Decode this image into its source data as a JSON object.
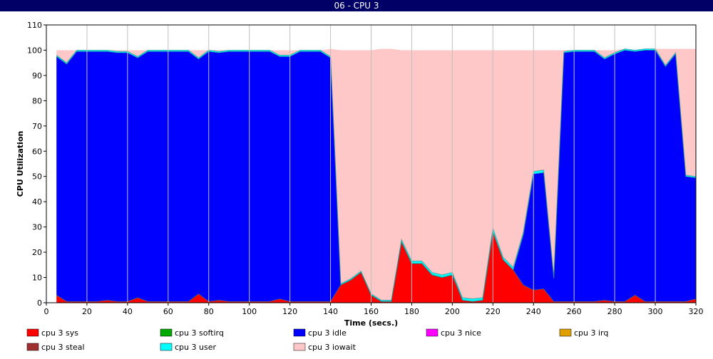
{
  "window": {
    "title": "06 - CPU 3"
  },
  "colors": {
    "background": "#ffffff",
    "grid": "#c0c0c0",
    "titlebar": "#000066"
  },
  "chart_data": {
    "type": "area",
    "stacked": true,
    "title": "",
    "xlabel": "Time (secs.)",
    "ylabel": "CPU Utilization",
    "xlim": [
      0,
      320
    ],
    "ylim": [
      0,
      110
    ],
    "xticks": [
      0,
      20,
      40,
      60,
      80,
      100,
      120,
      140,
      160,
      180,
      200,
      220,
      240,
      260,
      280,
      300,
      320
    ],
    "yticks": [
      0,
      10,
      20,
      30,
      40,
      50,
      60,
      70,
      80,
      90,
      100,
      110
    ],
    "grid": true,
    "legend_position": "bottom",
    "x": [
      5,
      10,
      15,
      20,
      25,
      30,
      35,
      40,
      45,
      50,
      55,
      60,
      65,
      70,
      75,
      80,
      85,
      90,
      95,
      100,
      105,
      110,
      115,
      120,
      125,
      130,
      135,
      140,
      145,
      150,
      155,
      160,
      165,
      170,
      175,
      180,
      185,
      190,
      195,
      200,
      205,
      210,
      215,
      220,
      225,
      230,
      235,
      240,
      245,
      250,
      255,
      260,
      265,
      270,
      275,
      280,
      285,
      290,
      295,
      300,
      305,
      310,
      315,
      320
    ],
    "series": [
      {
        "name": "cpu 3 sys",
        "color": "#ff0000",
        "values": [
          3,
          0.5,
          0.5,
          0.5,
          0.5,
          1,
          0.5,
          0.5,
          2,
          0.5,
          0.5,
          0.5,
          0.5,
          0.5,
          3.5,
          0.5,
          1,
          0.5,
          0.5,
          0.5,
          0.5,
          0.5,
          1.5,
          0.5,
          0.5,
          0.5,
          0.5,
          0.5,
          7,
          9,
          12,
          3,
          0.5,
          0.5,
          24,
          15.5,
          15.5,
          11,
          10,
          11,
          1,
          0.5,
          1,
          28,
          17,
          13,
          7,
          5,
          5.5,
          0.5,
          0.5,
          0.5,
          0.5,
          0.5,
          1,
          0.5,
          0.5,
          3,
          0.5,
          0.5,
          0.5,
          0.5,
          0.5,
          1.5
        ]
      },
      {
        "name": "cpu 3 softirq",
        "color": "#00aa00",
        "values": [
          0,
          0,
          0,
          0,
          0,
          0,
          0,
          0,
          0,
          0,
          0,
          0,
          0,
          0,
          0,
          0,
          0,
          0,
          0,
          0,
          0,
          0,
          0,
          0,
          0,
          0,
          0,
          0,
          0,
          0,
          0,
          0,
          0,
          0,
          0,
          0,
          0,
          0,
          0,
          0,
          0,
          0,
          0,
          0,
          0,
          0,
          0,
          0,
          0,
          0,
          0,
          0,
          0,
          0,
          0,
          0,
          0,
          0,
          0,
          0,
          0,
          0,
          0,
          0
        ]
      },
      {
        "name": "cpu 3 idle",
        "color": "#0000ff",
        "values": [
          94.5,
          94,
          99,
          99,
          99,
          98.5,
          98.5,
          98.5,
          95,
          99,
          99,
          99,
          99,
          99,
          93,
          99,
          98,
          99,
          99,
          99,
          99,
          99,
          96,
          97,
          99,
          99,
          99,
          96.5,
          0,
          0,
          0,
          0,
          0,
          0,
          0,
          0,
          0,
          0,
          0,
          0,
          0,
          0,
          0,
          0,
          0,
          0,
          20,
          46,
          46,
          9,
          98.5,
          99,
          99,
          99,
          95.5,
          98,
          99.5,
          96.5,
          99.5,
          99.5,
          93,
          98,
          49.5,
          48
        ]
      },
      {
        "name": "cpu 3 nice",
        "color": "#ff00ff",
        "values": [
          0,
          0,
          0,
          0,
          0,
          0,
          0,
          0,
          0,
          0,
          0,
          0,
          0,
          0,
          0,
          0,
          0,
          0,
          0,
          0,
          0,
          0,
          0,
          0,
          0,
          0,
          0,
          0,
          0,
          0,
          0,
          0,
          0,
          0,
          0,
          0,
          0,
          0,
          0,
          0,
          0,
          0,
          0,
          0,
          0,
          0,
          0,
          0,
          0,
          0,
          0,
          0,
          0,
          0,
          0,
          0,
          0,
          0,
          0,
          0,
          0,
          0,
          0,
          0
        ]
      },
      {
        "name": "cpu 3 irq",
        "color": "#e0a000",
        "values": [
          0,
          0,
          0,
          0,
          0,
          0,
          0,
          0,
          0,
          0,
          0,
          0,
          0,
          0,
          0,
          0,
          0,
          0,
          0,
          0,
          0,
          0,
          0,
          0,
          0,
          0,
          0,
          0,
          0,
          0,
          0,
          0,
          0,
          0,
          0,
          0,
          0,
          0,
          0,
          0,
          0,
          0,
          0,
          0,
          0,
          0,
          0,
          0,
          0,
          0,
          0,
          0,
          0,
          0,
          0,
          0,
          0,
          0,
          0,
          0,
          0,
          0,
          0,
          0
        ]
      },
      {
        "name": "cpu 3 steal",
        "color": "#a03030",
        "values": [
          0,
          0,
          0,
          0,
          0,
          0,
          0,
          0,
          0,
          0,
          0,
          0,
          0,
          0,
          0,
          0,
          0,
          0,
          0,
          0,
          0,
          0,
          0,
          0,
          0,
          0,
          0,
          0,
          0,
          0,
          0,
          0,
          0,
          0,
          0,
          0,
          0,
          0,
          0,
          0,
          0,
          0,
          0,
          0,
          0,
          0,
          0,
          0,
          0,
          0,
          0,
          0,
          0,
          0,
          0,
          0,
          0,
          0,
          0,
          0,
          0,
          0,
          0,
          0
        ]
      },
      {
        "name": "cpu 3 user",
        "color": "#00ffff",
        "values": [
          0.5,
          0.5,
          0.5,
          0.5,
          0.5,
          0.5,
          0.5,
          0.5,
          0.5,
          0.5,
          0.5,
          0.5,
          0.5,
          0.5,
          0.5,
          0.5,
          0.5,
          0.5,
          0.5,
          0.5,
          0.5,
          0.5,
          0.5,
          0.5,
          0.5,
          0.5,
          0.5,
          0.5,
          0.5,
          0.5,
          0.5,
          0.5,
          0.5,
          0.5,
          1,
          1,
          1,
          1,
          1,
          1,
          1,
          1,
          1,
          1.5,
          1,
          1,
          1,
          1,
          1,
          0.5,
          0.5,
          0.5,
          0.5,
          0.5,
          0.5,
          0.5,
          0.5,
          0.5,
          0.5,
          0.5,
          0.5,
          0.5,
          0.5,
          0.5
        ]
      },
      {
        "name": "cpu 3 iowait",
        "color": "#ffc8c8",
        "values": [
          2,
          5,
          0,
          0,
          0,
          0,
          0.5,
          0.5,
          2.5,
          0,
          0,
          0,
          0,
          0,
          3,
          0,
          0.5,
          0,
          0,
          0,
          0,
          0,
          2,
          2,
          0,
          0,
          0,
          3,
          92.5,
          90.5,
          87.5,
          96.5,
          99.5,
          99.5,
          75,
          83.5,
          83.5,
          88,
          89,
          88,
          98,
          98.5,
          98,
          70.5,
          82,
          86,
          72,
          48,
          47.5,
          90,
          0.5,
          0,
          0,
          0,
          3,
          1,
          0,
          0,
          0,
          0,
          6.5,
          1.5,
          50,
          50.5
        ]
      }
    ]
  }
}
